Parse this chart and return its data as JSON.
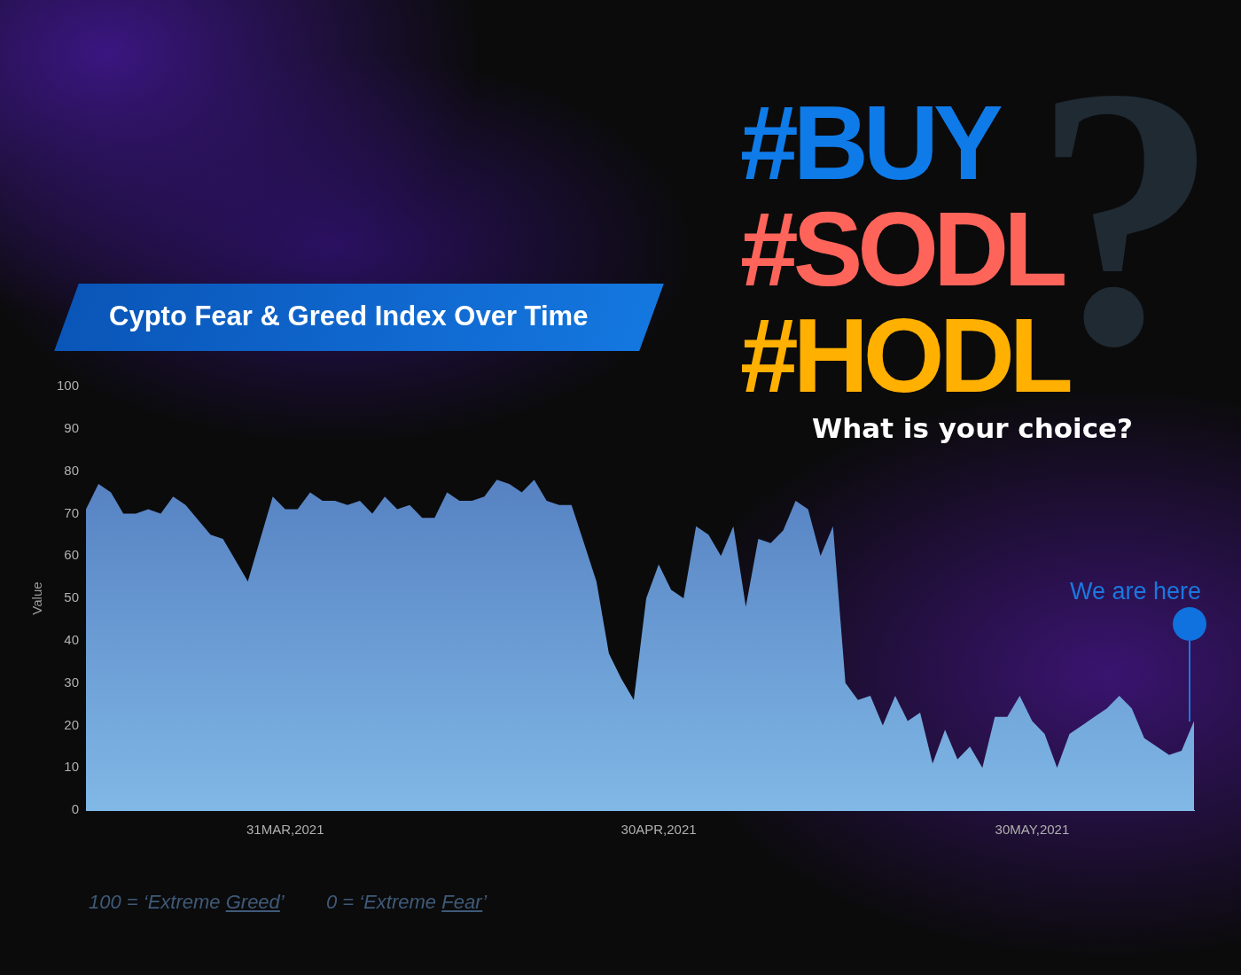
{
  "chart_data": {
    "type": "area",
    "title": "Cypto Fear & Greed Index Over Time",
    "ylabel": "Value",
    "x": [
      "2021-03-15",
      "2021-03-16",
      "2021-03-17",
      "2021-03-18",
      "2021-03-19",
      "2021-03-20",
      "2021-03-21",
      "2021-03-22",
      "2021-03-23",
      "2021-03-25",
      "2021-03-26",
      "2021-03-27",
      "2021-03-28",
      "2021-03-29",
      "2021-03-30",
      "2021-03-31",
      "2021-04-01",
      "2021-04-02",
      "2021-04-03",
      "2021-04-04",
      "2021-04-05",
      "2021-04-06",
      "2021-04-07",
      "2021-04-08",
      "2021-04-09",
      "2021-04-10",
      "2021-04-11",
      "2021-04-12",
      "2021-04-13",
      "2021-04-14",
      "2021-04-15",
      "2021-04-16",
      "2021-04-17",
      "2021-04-18",
      "2021-04-19",
      "2021-04-20",
      "2021-04-21",
      "2021-04-22",
      "2021-04-23",
      "2021-04-24",
      "2021-04-25",
      "2021-04-26",
      "2021-04-27",
      "2021-04-28",
      "2021-04-29",
      "2021-04-30",
      "2021-05-01",
      "2021-05-02",
      "2021-05-03",
      "2021-05-04",
      "2021-05-05",
      "2021-05-06",
      "2021-05-07",
      "2021-05-08",
      "2021-05-09",
      "2021-05-10",
      "2021-05-11",
      "2021-05-12",
      "2021-05-13",
      "2021-05-14",
      "2021-05-15",
      "2021-05-16",
      "2021-05-17",
      "2021-05-18",
      "2021-05-19",
      "2021-05-20",
      "2021-05-21",
      "2021-05-22",
      "2021-05-23",
      "2021-05-24",
      "2021-05-25",
      "2021-05-26",
      "2021-05-27",
      "2021-05-28",
      "2021-05-29",
      "2021-05-30",
      "2021-05-31",
      "2021-06-01",
      "2021-06-02",
      "2021-06-03",
      "2021-06-04",
      "2021-06-05",
      "2021-06-06",
      "2021-06-07",
      "2021-06-08",
      "2021-06-09",
      "2021-06-10",
      "2021-06-11",
      "2021-06-12"
    ],
    "series": [
      {
        "color": "#4a72b8",
        "values": [
          71,
          77,
          75,
          70,
          70,
          71,
          70,
          74,
          72,
          65,
          64,
          59,
          54,
          64,
          74,
          71,
          71,
          75,
          73,
          73,
          72,
          73,
          70,
          74,
          71,
          72,
          69,
          69,
          75,
          73,
          73,
          74,
          78,
          77,
          75,
          78,
          73,
          72,
          72,
          63,
          54,
          37,
          31,
          26,
          50,
          58,
          52,
          50,
          67,
          65,
          60,
          67,
          48,
          64,
          63,
          66,
          73,
          71,
          60,
          67,
          30,
          26,
          27,
          20,
          27,
          21,
          23,
          11,
          19,
          12,
          15,
          10,
          22,
          22,
          27,
          21,
          18,
          10,
          18,
          20,
          22,
          24,
          27,
          24,
          17,
          15,
          13,
          14,
          21
        ]
      }
    ],
    "xlim": [
      "2021-03-15",
      "2021-06-12"
    ],
    "xticks": [
      {
        "value": "2021-03-31",
        "label": "31MAR,2021"
      },
      {
        "value": "2021-04-30",
        "label": "30APR,2021"
      },
      {
        "value": "2021-05-30",
        "label": "30MAY,2021"
      }
    ],
    "ylim": [
      0,
      100
    ],
    "yticks": [
      0,
      10,
      20,
      30,
      40,
      50,
      60,
      70,
      80,
      90,
      100
    ],
    "grid": false,
    "legend": false,
    "annotations": [
      "We are here",
      "100 = ‘Extreme Greed’",
      "0 = ‘Extreme Fear’",
      "#BUY",
      "#SODL",
      "#HODL",
      "?",
      "What is your choice?"
    ]
  }
}
